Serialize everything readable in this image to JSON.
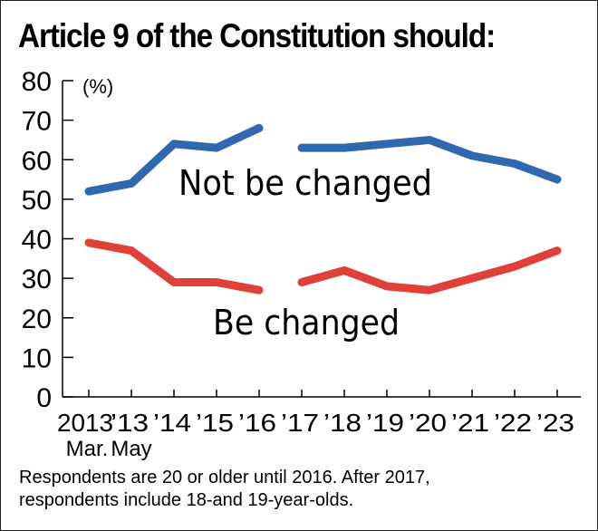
{
  "chart_data": {
    "type": "line",
    "title": "Article 9 of the Constitution should:",
    "ylabel": "(%)",
    "ylim": [
      0,
      80
    ],
    "yticks": [
      0,
      10,
      20,
      30,
      40,
      50,
      60,
      70,
      80
    ],
    "categories": [
      "2013\nMar.",
      "'13\nMay",
      "'14",
      "'15",
      "'16",
      "'17",
      "'18",
      "'19",
      "'20",
      "'21",
      "'22",
      "'23"
    ],
    "tick_labels": [
      "2013",
      "’13",
      "’14",
      "’15",
      "’16",
      "’17",
      "’18",
      "’19",
      "’20",
      "’21",
      "’22",
      "’23"
    ],
    "sub_labels": [
      "Mar.",
      "May"
    ],
    "grid": false,
    "series": [
      {
        "name": "Not be changed",
        "color": "#3068b0",
        "values": [
          52,
          54,
          64,
          63,
          68,
          63,
          63,
          64,
          65,
          61,
          59,
          55
        ]
      },
      {
        "name": "Be changed",
        "color": "#e0403a",
        "values": [
          39,
          37,
          29,
          29,
          27,
          29,
          32,
          28,
          27,
          30,
          33,
          37
        ]
      }
    ],
    "break_after_index": 4,
    "note": [
      "Respondents are 20 or older until 2016. After 2017,",
      "respondents include 18-and 19-year-olds."
    ]
  }
}
